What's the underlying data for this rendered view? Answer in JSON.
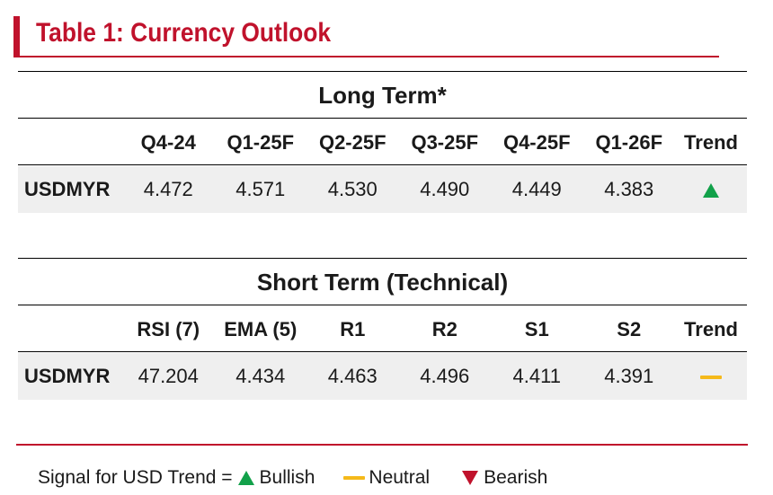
{
  "title": "Table 1: Currency Outlook",
  "long_term": {
    "heading": "Long Term*",
    "columns": [
      "Q4-24",
      "Q1-25F",
      "Q2-25F",
      "Q3-25F",
      "Q4-25F",
      "Q1-26F"
    ],
    "trend_header": "Trend",
    "row": {
      "label": "USDMYR",
      "values": [
        "4.472",
        "4.571",
        "4.530",
        "4.490",
        "4.449",
        "4.383"
      ],
      "trend": "bullish"
    }
  },
  "short_term": {
    "heading": "Short Term (Technical)",
    "columns": [
      "RSI (7)",
      "EMA (5)",
      "R1",
      "R2",
      "S1",
      "S2"
    ],
    "trend_header": "Trend",
    "row": {
      "label": "USDMYR",
      "values": [
        "47.204",
        "4.434",
        "4.463",
        "4.496",
        "4.411",
        "4.391"
      ],
      "trend": "neutral"
    }
  },
  "legend": {
    "prefix": "Signal for USD Trend =",
    "bullish": "Bullish",
    "neutral": "Neutral",
    "bearish": "Bearish"
  },
  "colors": {
    "accent": "#c0122c",
    "bullish": "#12a14a",
    "neutral": "#f5b91a",
    "bearish": "#c0122c",
    "row_bg": "#efefef"
  }
}
